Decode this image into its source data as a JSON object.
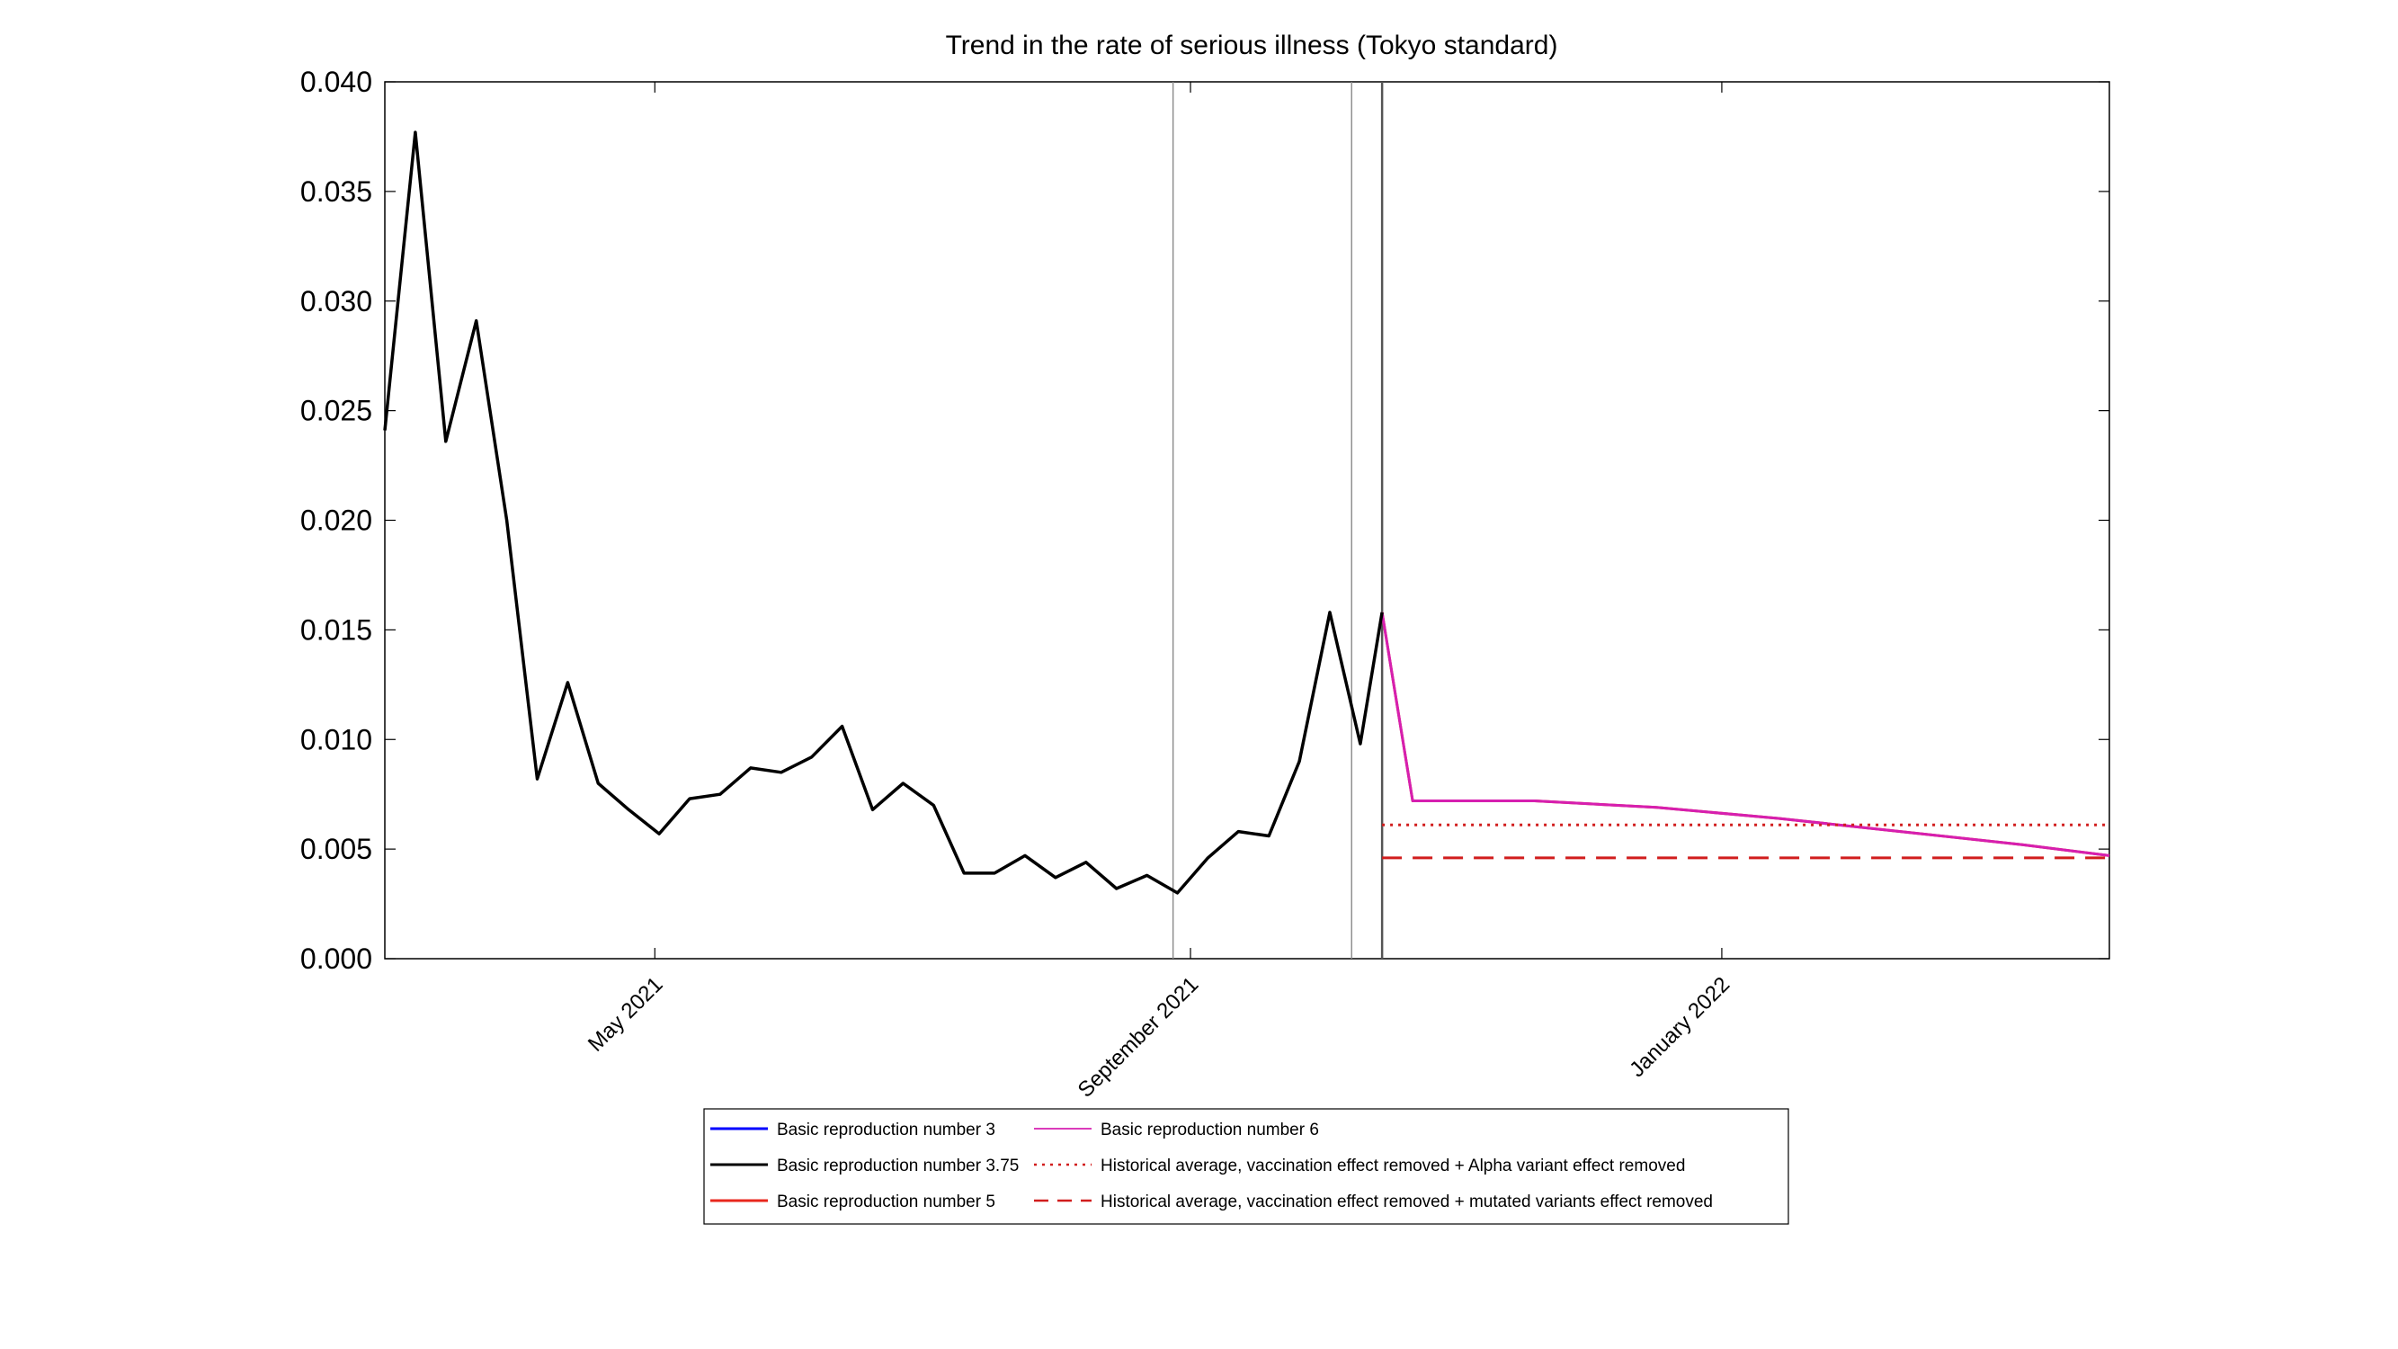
{
  "chart_data": {
    "type": "line",
    "title": "Trend in the rate of serious illness (Tokyo standard)",
    "xlabel": "",
    "ylabel": "",
    "ylim": [
      0,
      0.04
    ],
    "xlim": [
      "2021-02-28",
      "2022-03-31"
    ],
    "yticks": [
      "0.000",
      "0.005",
      "0.010",
      "0.015",
      "0.020",
      "0.025",
      "0.030",
      "0.035",
      "0.040"
    ],
    "xticks": [
      {
        "date": "2021-05-01",
        "label": "May 2021"
      },
      {
        "date": "2021-09-01",
        "label": "September 2021"
      },
      {
        "date": "2022-01-01",
        "label": "January 2022"
      }
    ],
    "grid": false,
    "vertical_lines": [
      "2021-08-28",
      "2021-10-08",
      "2021-10-15"
    ],
    "legend_position": "bottom-center",
    "legend_columns": [
      [
        "Basic reproduction number 3",
        "Basic reproduction number 3.75",
        "Basic reproduction number 5"
      ],
      [
        "Basic reproduction number 6",
        "Historical average, vaccination effect removed + Alpha variant effect removed",
        "Historical average, vaccination effect removed + mutated variants effect removed"
      ]
    ],
    "series": [
      {
        "name": "Basic reproduction number 3",
        "color": "#0000ff",
        "style": "solid",
        "x": [],
        "y": []
      },
      {
        "name": "Basic reproduction number 3.75",
        "color": "#000000",
        "style": "solid",
        "x": [
          "2021-02-28",
          "2021-03-07",
          "2021-03-14",
          "2021-03-21",
          "2021-03-28",
          "2021-04-04",
          "2021-04-11",
          "2021-04-18",
          "2021-04-25",
          "2021-05-02",
          "2021-05-09",
          "2021-05-16",
          "2021-05-23",
          "2021-05-30",
          "2021-06-06",
          "2021-06-13",
          "2021-06-20",
          "2021-06-27",
          "2021-07-04",
          "2021-07-11",
          "2021-07-18",
          "2021-07-25",
          "2021-08-01",
          "2021-08-08",
          "2021-08-15",
          "2021-08-22",
          "2021-08-29",
          "2021-09-05",
          "2021-09-12",
          "2021-09-19",
          "2021-09-26",
          "2021-10-03",
          "2021-10-10",
          "2021-10-15"
        ],
        "y": [
          0.0241,
          0.0377,
          0.0236,
          0.0291,
          0.02,
          0.0082,
          0.0126,
          0.008,
          0.0068,
          0.0057,
          0.0073,
          0.0075,
          0.0087,
          0.0085,
          0.0092,
          0.0106,
          0.0068,
          0.008,
          0.007,
          0.0039,
          0.0039,
          0.0047,
          0.0037,
          0.0044,
          0.0032,
          0.0038,
          0.003,
          0.0046,
          0.0058,
          0.0056,
          0.009,
          0.0158,
          0.0098,
          0.0158
        ]
      },
      {
        "name": "Basic reproduction number 5",
        "color": "#e8271c",
        "style": "solid",
        "x": [
          "2021-10-15",
          "2021-10-22",
          "2021-11-19",
          "2021-12-17",
          "2022-01-14",
          "2022-02-11",
          "2022-03-11",
          "2022-03-31"
        ],
        "y": [
          0.0158,
          0.0072,
          0.0072,
          0.0069,
          0.0064,
          0.0058,
          0.0052,
          0.0047
        ]
      },
      {
        "name": "Basic reproduction number 6",
        "color": "#d61fb0",
        "style": "solid",
        "x": [
          "2021-10-15",
          "2021-10-22",
          "2021-11-19",
          "2021-12-17",
          "2022-01-14",
          "2022-02-11",
          "2022-03-11",
          "2022-03-31"
        ],
        "y": [
          0.0158,
          0.0072,
          0.0072,
          0.0069,
          0.0064,
          0.0058,
          0.0052,
          0.0047
        ]
      },
      {
        "name": "Historical average, vaccination effect removed + Alpha variant effect removed",
        "color": "#d11d1d",
        "style": "dotted",
        "x": [
          "2021-10-15",
          "2022-03-31"
        ],
        "y": [
          0.0061,
          0.0061
        ]
      },
      {
        "name": "Historical average, vaccination effect removed + mutated variants effect removed",
        "color": "#d11d1d",
        "style": "dashed",
        "x": [
          "2021-10-15",
          "2022-03-31"
        ],
        "y": [
          0.0046,
          0.0046
        ]
      }
    ]
  }
}
